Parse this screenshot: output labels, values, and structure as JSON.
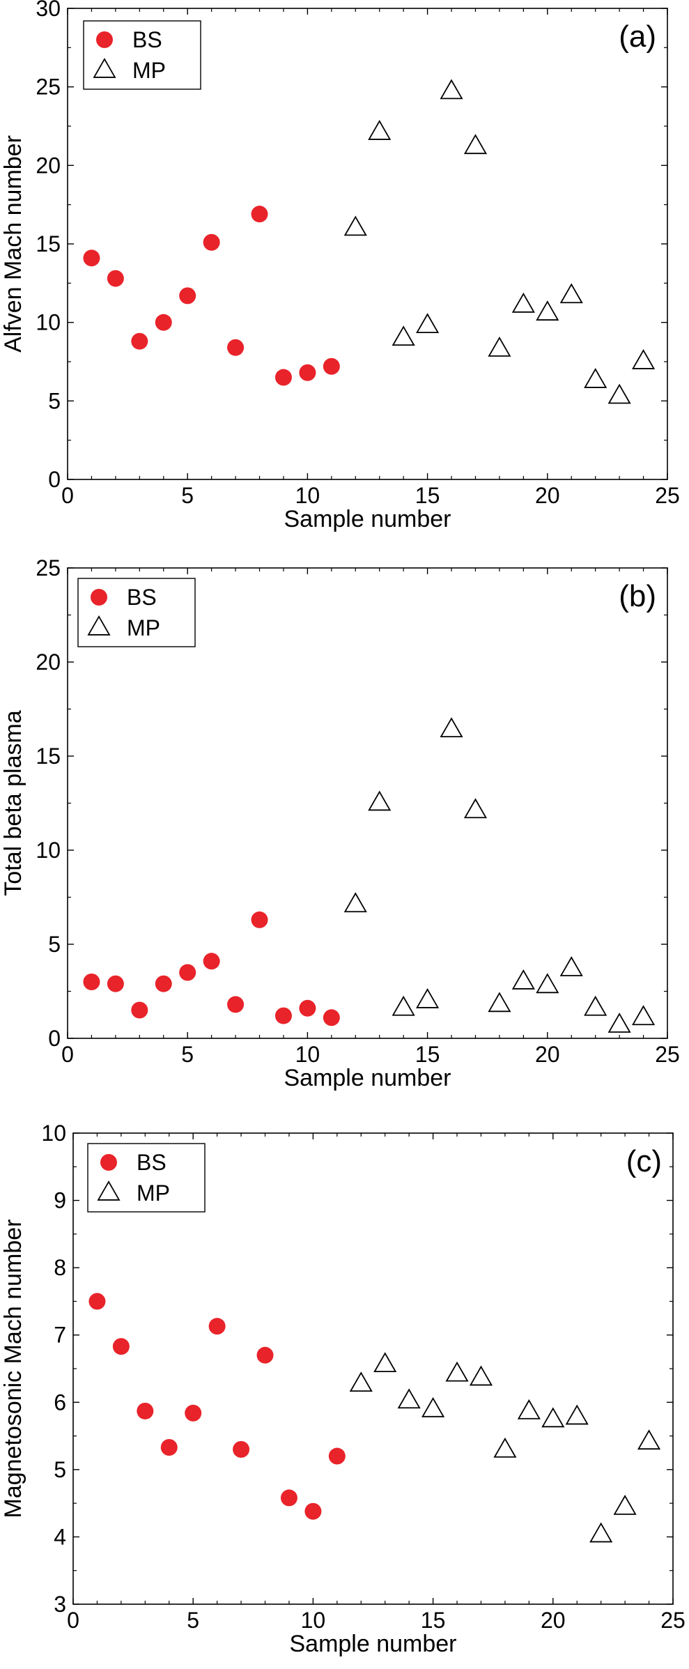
{
  "chart_data": [
    {
      "type": "scatter",
      "panel_label": "(a)",
      "xlabel": "Sample number",
      "ylabel": "Alfven Mach number",
      "xlim": [
        0,
        25
      ],
      "ylim": [
        0,
        30
      ],
      "xticks": [
        0,
        5,
        10,
        15,
        20,
        25
      ],
      "yticks": [
        0,
        5,
        10,
        15,
        20,
        25,
        30
      ],
      "grid": false,
      "legend_position": "top-left",
      "series": [
        {
          "name": "BS",
          "marker": "circle",
          "color": "#e8232a",
          "x": [
            1,
            2,
            3,
            4,
            5,
            6,
            7,
            8,
            9,
            10,
            11
          ],
          "y": [
            14.1,
            12.8,
            8.8,
            10.0,
            11.7,
            15.1,
            8.4,
            16.9,
            6.5,
            6.8,
            7.2
          ]
        },
        {
          "name": "MP",
          "marker": "triangle",
          "color": "#000000",
          "x": [
            12,
            13,
            14,
            15,
            16,
            17,
            18,
            19,
            20,
            21,
            22,
            23,
            24
          ],
          "y": [
            16.0,
            22.1,
            9.0,
            9.8,
            24.7,
            21.2,
            8.3,
            11.1,
            10.6,
            11.7,
            6.3,
            5.3,
            7.5
          ]
        }
      ]
    },
    {
      "type": "scatter",
      "panel_label": "(b)",
      "xlabel": "Sample number",
      "ylabel": "Total beta plasma",
      "xlim": [
        0,
        25
      ],
      "ylim": [
        0,
        25
      ],
      "xticks": [
        0,
        5,
        10,
        15,
        20,
        25
      ],
      "yticks": [
        0,
        5,
        10,
        15,
        20,
        25
      ],
      "grid": false,
      "legend_position": "top-left",
      "series": [
        {
          "name": "BS",
          "marker": "circle",
          "color": "#e8232a",
          "x": [
            1,
            2,
            3,
            4,
            5,
            6,
            7,
            8,
            9,
            10,
            11
          ],
          "y": [
            3.0,
            2.9,
            1.5,
            2.9,
            3.5,
            4.1,
            1.8,
            6.3,
            1.2,
            1.6,
            1.1
          ]
        },
        {
          "name": "MP",
          "marker": "triangle",
          "color": "#000000",
          "x": [
            12,
            13,
            14,
            15,
            16,
            17,
            18,
            19,
            20,
            21,
            22,
            23,
            24
          ],
          "y": [
            7.1,
            12.5,
            1.6,
            2.0,
            16.4,
            12.1,
            1.8,
            3.0,
            2.8,
            3.7,
            1.6,
            0.7,
            1.1
          ]
        }
      ]
    },
    {
      "type": "scatter",
      "panel_label": "(c)",
      "xlabel": "Sample number",
      "ylabel": "Magnetosonic Mach number",
      "xlim": [
        0,
        25
      ],
      "ylim": [
        3,
        10
      ],
      "xticks": [
        0,
        5,
        10,
        15,
        20,
        25
      ],
      "yticks": [
        3,
        4,
        5,
        6,
        7,
        8,
        9,
        10
      ],
      "grid": false,
      "legend_position": "top-left",
      "series": [
        {
          "name": "BS",
          "marker": "circle",
          "color": "#e8232a",
          "x": [
            1,
            2,
            3,
            4,
            5,
            6,
            7,
            8,
            9,
            10,
            11
          ],
          "y": [
            7.5,
            6.83,
            5.87,
            5.33,
            5.84,
            7.13,
            5.3,
            6.7,
            4.58,
            4.38,
            5.2
          ]
        },
        {
          "name": "MP",
          "marker": "triangle",
          "color": "#000000",
          "x": [
            12,
            13,
            14,
            15,
            16,
            17,
            18,
            19,
            20,
            21,
            22,
            23,
            24
          ],
          "y": [
            6.27,
            6.56,
            6.02,
            5.89,
            6.42,
            6.36,
            5.29,
            5.86,
            5.74,
            5.78,
            4.03,
            4.44,
            5.41
          ]
        }
      ]
    }
  ]
}
